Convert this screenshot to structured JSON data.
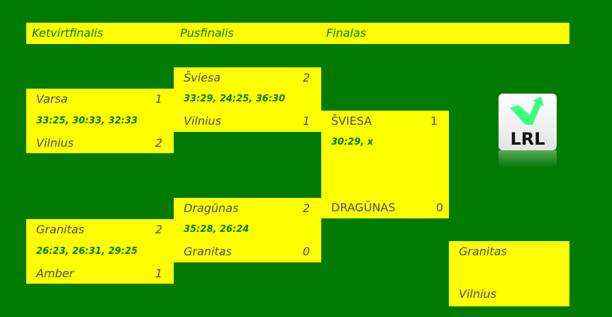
{
  "header": {
    "quarterfinals": "Ketvirtfinalis",
    "semifinals": "Pusfinalis",
    "final": "Finalas"
  },
  "qf1": {
    "team1": "Varsa",
    "score1": "1",
    "results": "33:25, 30:33, 32:33",
    "team2": "Vilnius",
    "score2": "2"
  },
  "qf2": {
    "team1": "Granitas",
    "score1": "2",
    "results": "26:23, 26:31, 29:25",
    "team2": "Amber",
    "score2": "1"
  },
  "sf1": {
    "team1": "Šviesa",
    "score1": "2",
    "results": "33:29, 24:25, 36:30",
    "team2": "Vilnius",
    "score2": "1"
  },
  "sf2": {
    "team1": "Dragūnas",
    "score1": "2",
    "results": "35:28, 26:24",
    "team2": "Granitas",
    "score2": "0"
  },
  "final": {
    "team1": "ŠVIESA",
    "score1": "1",
    "results": "30:29, x",
    "team2": "DRAGŪNAS",
    "score2": "0"
  },
  "third_place": {
    "team1": "Granitas",
    "team2": "Vilnius"
  },
  "logo": {
    "text": "LRL",
    "accent": "#3cff80"
  },
  "colors": {
    "background": "#007a00",
    "box": "#ffff00",
    "team_text": "#4a4a68",
    "result_text": "#007a00"
  }
}
